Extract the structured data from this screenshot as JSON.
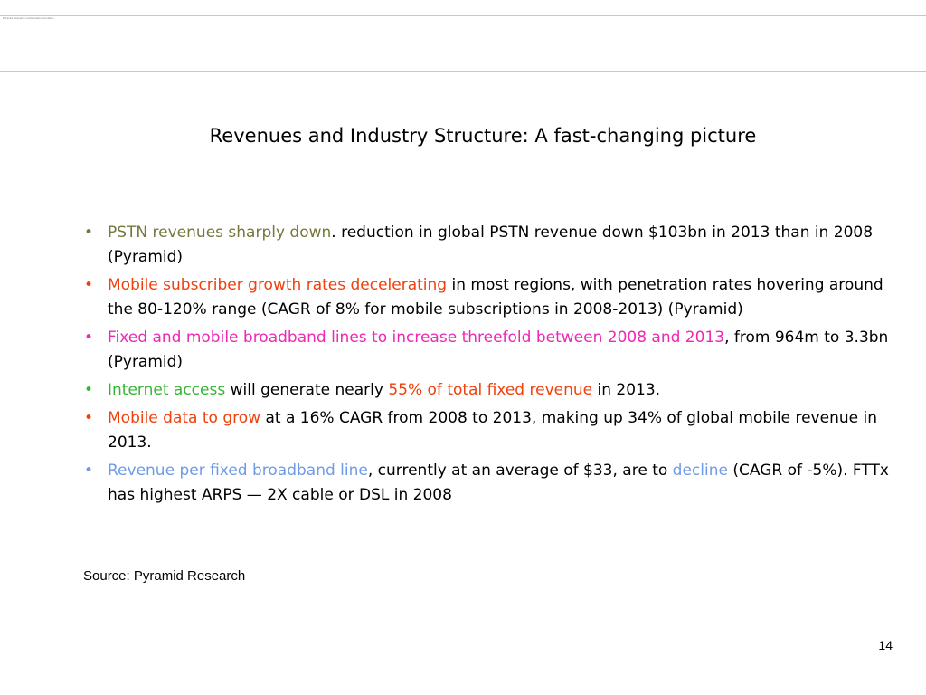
{
  "header": {
    "tiny_text": "Pyramid Research confidential information"
  },
  "slide": {
    "title": "Revenues and Industry Structure: A fast-changing picture",
    "bullet_symbol": "•",
    "bullets": [
      {
        "highlight": "PSTN revenues sharply down",
        "highlight_color": "#77773c",
        "text": ". reduction in global PSTN revenue down $103bn in 2013 than in 2008 (Pyramid)"
      },
      {
        "highlight": "Mobile subscriber growth rates decelerating",
        "highlight_color": "#f0400c",
        "text": " in most regions, with penetration rates hovering around the 80-120% range (CAGR of 8% for mobile subscriptions in 2008-2013) (Pyramid)"
      },
      {
        "highlight": "Fixed and mobile broadband lines to increase threefold between 2008 and 2013",
        "highlight_color": "#ee28b4",
        "text": ", from 964m to 3.3bn (Pyramid)"
      },
      {
        "highlight": "Internet access",
        "highlight_color": "#35b535",
        "text": " will generate nearly ",
        "highlight2": "55% of total fixed revenue",
        "highlight2_color": "#f0400c",
        "text2": " in 2013."
      },
      {
        "highlight": "Mobile data to grow",
        "highlight_color": "#f0400c",
        "text": " at a 16% CAGR from 2008 to 2013, making up 34% of global mobile revenue in 2013."
      },
      {
        "highlight": "Revenue per fixed broadband line",
        "highlight_color": "#6f9be6",
        "text": ", currently at an average of $33, are to ",
        "highlight2": "decline",
        "highlight2_color": "#6f9be6",
        "text2": " (CAGR of -5%). FTTx has highest ARPS — 2X cable or DSL in 2008"
      }
    ],
    "source": "Source: Pyramid Research",
    "page_number": "14"
  }
}
